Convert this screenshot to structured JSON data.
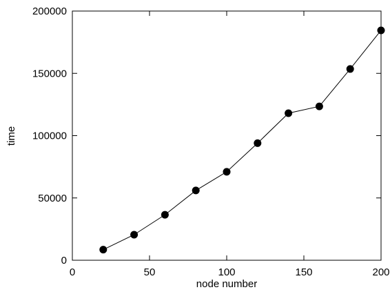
{
  "chart_data": {
    "type": "line",
    "title": "",
    "xlabel": "node number",
    "ylabel": "time",
    "xlim": [
      0,
      200
    ],
    "ylim": [
      0,
      200000
    ],
    "x_ticks": [
      0,
      50,
      100,
      150,
      200
    ],
    "y_ticks": [
      0,
      50000,
      100000,
      150000,
      200000
    ],
    "x_tick_labels": [
      "0",
      "50",
      "100",
      "150",
      "200"
    ],
    "y_tick_labels": [
      "0",
      "50000",
      "100000",
      "150000",
      "200000"
    ],
    "grid": false,
    "legend": "none",
    "series": [
      {
        "x": [
          20,
          40,
          60,
          80,
          100,
          120,
          140,
          160,
          180,
          200
        ],
        "y": [
          8500,
          20500,
          36500,
          56000,
          71000,
          94000,
          118000,
          123500,
          153500,
          184500
        ],
        "marker": "filled-circle",
        "color": "#000000"
      }
    ]
  }
}
